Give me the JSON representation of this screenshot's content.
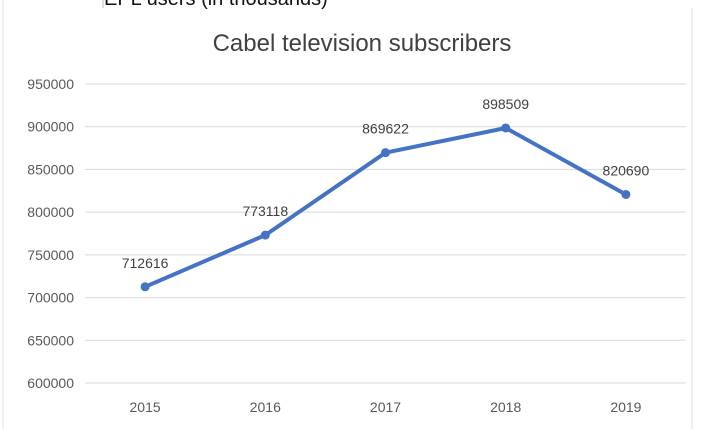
{
  "header_fragment": "EPL users (in thousands)",
  "colors": {
    "line": "#4472C4",
    "grid": "#d9d9d9",
    "axis_text": "#595959",
    "title": "#404040",
    "data_label": "#404040",
    "cell_border": "#d4d4d4"
  },
  "chart_data": {
    "type": "line",
    "title": "Cabel television subscribers",
    "xlabel": "",
    "ylabel": "",
    "categories": [
      "2015",
      "2016",
      "2017",
      "2018",
      "2019"
    ],
    "series": [
      {
        "values": [
          712616,
          773118,
          869622,
          898509,
          820690
        ]
      }
    ],
    "data_labels": [
      "712616",
      "773118",
      "869622",
      "898509",
      "820690"
    ],
    "ylim": [
      600000,
      950000
    ],
    "yticks": [
      "600000",
      "650000",
      "700000",
      "750000",
      "800000",
      "850000",
      "900000",
      "950000"
    ],
    "grid": true,
    "legend": "none"
  }
}
